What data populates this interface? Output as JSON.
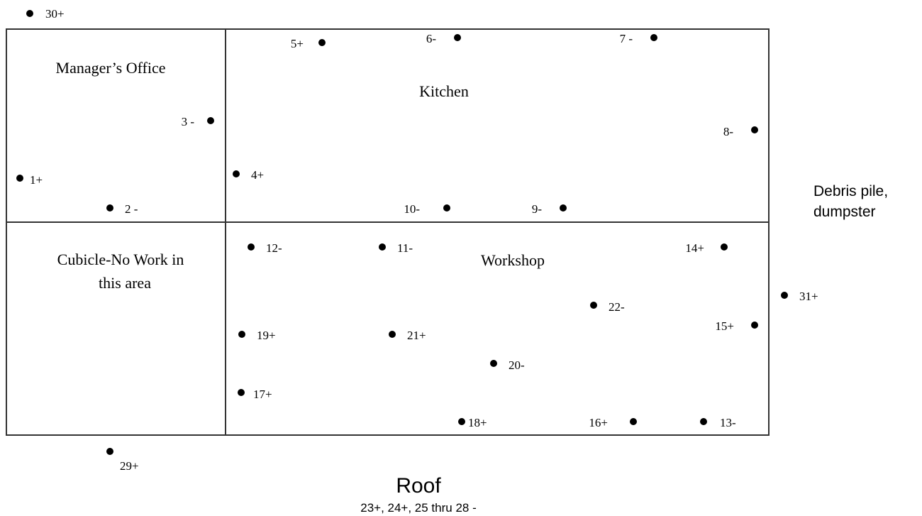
{
  "rooms": {
    "manager_office": "Manager’s Office",
    "kitchen": "Kitchen",
    "cubicle_line1": "Cubicle-No Work in",
    "cubicle_line2": "this area",
    "workshop": "Workshop"
  },
  "outside": {
    "debris_line1": "Debris pile,",
    "debris_line2": "dumpster",
    "roof_title": "Roof",
    "roof_note": "23+, 24+, 25 thru 28 -"
  },
  "points": [
    {
      "label": "30+"
    },
    {
      "label": "5+"
    },
    {
      "label": "6-"
    },
    {
      "label": "7 -"
    },
    {
      "label": "3 -"
    },
    {
      "label": "8-"
    },
    {
      "label": "1+"
    },
    {
      "label": "4+"
    },
    {
      "label": "2 -"
    },
    {
      "label": "10-"
    },
    {
      "label": "9-"
    },
    {
      "label": "12-"
    },
    {
      "label": "11-"
    },
    {
      "label": "14+"
    },
    {
      "label": "31+"
    },
    {
      "label": "22-"
    },
    {
      "label": "15+"
    },
    {
      "label": "19+"
    },
    {
      "label": "21+"
    },
    {
      "label": "20-"
    },
    {
      "label": "17+"
    },
    {
      "label": "18+"
    },
    {
      "label": "16+"
    },
    {
      "label": "13-"
    },
    {
      "label": "29+"
    }
  ]
}
